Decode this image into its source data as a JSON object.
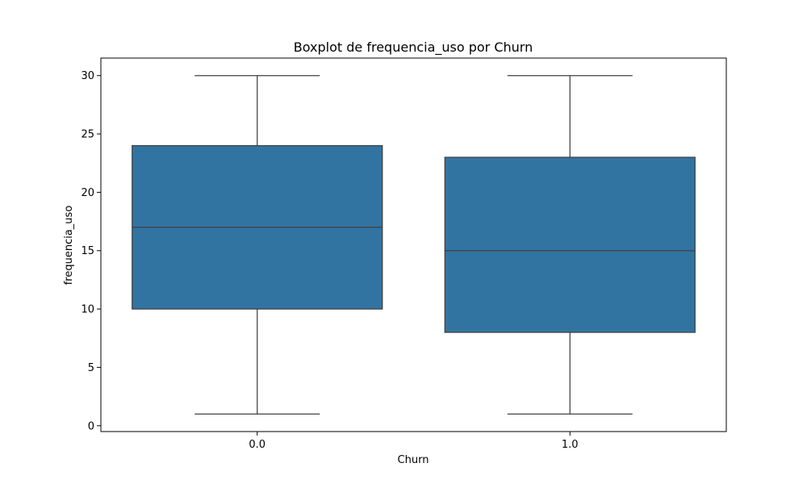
{
  "chart_data": {
    "type": "boxplot",
    "title": "Boxplot de frequencia_uso por Churn",
    "xlabel": "Churn",
    "ylabel": "frequencia_uso",
    "categories": [
      "0.0",
      "1.0"
    ],
    "boxes": [
      {
        "category": "0.0",
        "whisker_low": 1,
        "q1": 10,
        "median": 17,
        "q3": 24,
        "whisker_high": 30
      },
      {
        "category": "1.0",
        "whisker_low": 1,
        "q1": 8,
        "median": 15,
        "q3": 23,
        "whisker_high": 30
      }
    ],
    "yticks": [
      0,
      5,
      10,
      15,
      20,
      25,
      30
    ],
    "ylim": [
      -0.5,
      31.5
    ],
    "grid": false,
    "colors": {
      "box_fill": "#3274a1",
      "line": "#3f3f3f",
      "axis": "#000000"
    }
  }
}
